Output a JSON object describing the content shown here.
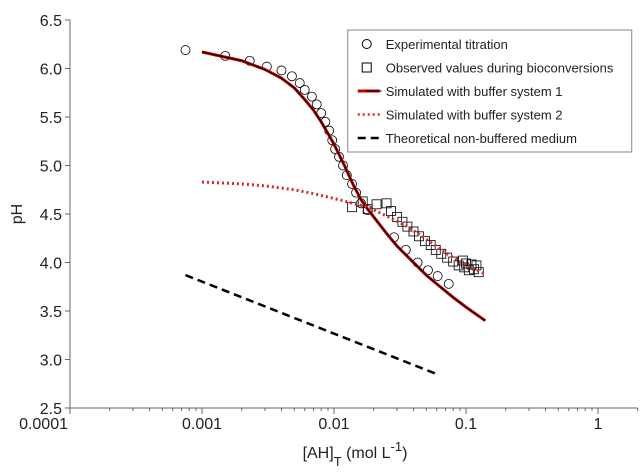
{
  "chart_data": {
    "type": "line",
    "xlabel_parts": [
      {
        "text": "[AH]"
      },
      {
        "text": "T",
        "shift": "sub"
      },
      {
        "text": " (mol L"
      },
      {
        "text": "-1",
        "shift": "sup"
      },
      {
        "text": ")"
      }
    ],
    "ylabel": "pH",
    "xscale": "log",
    "xlim": [
      0.0001,
      2
    ],
    "xticks": [
      0.0001,
      0.001,
      0.01,
      0.1,
      1
    ],
    "ylim": [
      2.5,
      6.5
    ],
    "yticks": [
      2.5,
      {
        "value": 3,
        "label": "3.0"
      },
      3.5,
      {
        "value": 4,
        "label": "4.0"
      },
      4.5,
      {
        "value": 5,
        "label": "5.0"
      },
      5.5,
      {
        "value": 6,
        "label": "6.0"
      },
      6.5
    ],
    "grid": false,
    "legend": "upper right",
    "series": [
      {
        "name": "Experimental titration",
        "marker": "circle",
        "line": "none",
        "color": "#000000",
        "x": [
          0.00075,
          0.0015,
          0.0023,
          0.0031,
          0.004,
          0.0048,
          0.0055,
          0.006,
          0.0068,
          0.0074,
          0.008,
          0.0086,
          0.0092,
          0.0097,
          0.0102,
          0.0109,
          0.0117,
          0.0125,
          0.0137,
          0.0147,
          0.016,
          0.018,
          0.0285,
          0.035,
          0.043,
          0.0515,
          0.061,
          0.074
        ],
        "values": [
          6.19,
          6.13,
          6.08,
          6.02,
          5.98,
          5.92,
          5.85,
          5.78,
          5.71,
          5.63,
          5.54,
          5.45,
          5.36,
          5.26,
          5.17,
          5.09,
          5.0,
          4.9,
          4.81,
          4.72,
          4.61,
          4.54,
          4.26,
          4.13,
          4.0,
          3.92,
          3.86,
          3.78
        ]
      },
      {
        "name": "Observed values during bioconversions",
        "marker": "square",
        "line": "none",
        "color": "#000000",
        "x": [
          0.0137,
          0.0165,
          0.018,
          0.021,
          0.025,
          0.027,
          0.03,
          0.033,
          0.036,
          0.04,
          0.044,
          0.049,
          0.054,
          0.059,
          0.065,
          0.072,
          0.08,
          0.088,
          0.095,
          0.097,
          0.1,
          0.105,
          0.11,
          0.115,
          0.12,
          0.125
        ],
        "values": [
          4.57,
          4.63,
          4.55,
          4.6,
          4.61,
          4.53,
          4.47,
          4.42,
          4.37,
          4.32,
          4.27,
          4.22,
          4.18,
          4.13,
          4.09,
          4.05,
          4.01,
          3.97,
          4.02,
          3.95,
          3.99,
          3.92,
          3.98,
          3.93,
          3.97,
          3.9
        ]
      },
      {
        "name": "Simulated with buffer system 1",
        "marker": "none",
        "line": "solid",
        "color": "#c00000",
        "x": [
          0.001,
          0.002,
          0.003,
          0.004,
          0.005,
          0.006,
          0.007,
          0.008,
          0.009,
          0.01,
          0.012,
          0.014,
          0.016,
          0.018,
          0.02,
          0.025,
          0.03,
          0.04,
          0.05,
          0.06,
          0.08,
          0.1,
          0.14
        ],
        "values": [
          6.17,
          6.08,
          5.99,
          5.9,
          5.8,
          5.68,
          5.57,
          5.45,
          5.33,
          5.22,
          5.0,
          4.8,
          4.65,
          4.55,
          4.47,
          4.3,
          4.17,
          4.0,
          3.87,
          3.78,
          3.64,
          3.54,
          3.4
        ]
      },
      {
        "name": "Simulated with buffer system 2",
        "marker": "none",
        "line": "dotted",
        "color": "#d62728",
        "x": [
          0.001,
          0.002,
          0.003,
          0.005,
          0.007,
          0.01,
          0.014,
          0.018,
          0.025,
          0.035,
          0.05,
          0.07,
          0.1,
          0.14
        ],
        "values": [
          4.83,
          4.81,
          4.79,
          4.75,
          4.71,
          4.66,
          4.61,
          4.57,
          4.48,
          4.38,
          4.24,
          4.1,
          3.97,
          3.88
        ]
      },
      {
        "name": "Theoretical non-buffered medium",
        "marker": "none",
        "line": "dashed",
        "color": "#000000",
        "x": [
          0.00075,
          0.06
        ],
        "values": [
          3.87,
          2.85
        ]
      }
    ]
  }
}
